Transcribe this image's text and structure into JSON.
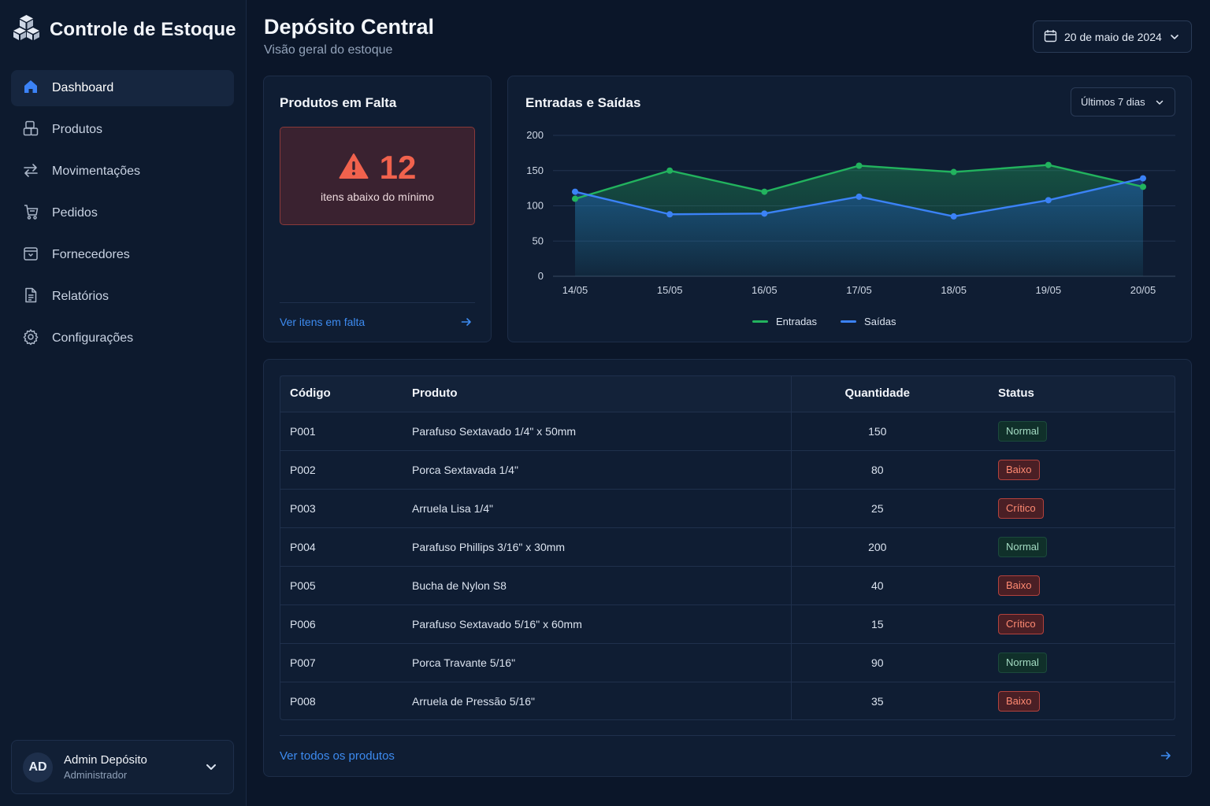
{
  "app": {
    "title": "Controle de Estoque",
    "logo_icon": "boxes-icon"
  },
  "sidebar": {
    "items": [
      {
        "label": "Dashboard",
        "icon": "home-icon",
        "active": true
      },
      {
        "label": "Produtos",
        "icon": "box-stack-icon",
        "active": false
      },
      {
        "label": "Movimentações",
        "icon": "arrows-swap-icon",
        "active": false
      },
      {
        "label": "Pedidos",
        "icon": "cart-icon",
        "active": false
      },
      {
        "label": "Fornecedores",
        "icon": "shop-bag-icon",
        "active": false
      },
      {
        "label": "Relatórios",
        "icon": "document-icon",
        "active": false
      },
      {
        "label": "Configurações",
        "icon": "gear-icon",
        "active": false
      }
    ],
    "user": {
      "initials": "AD",
      "name": "Admin Depósito",
      "role": "Administrador"
    }
  },
  "header": {
    "title": "Depósito Central",
    "subtitle": "Visão geral do estoque",
    "date": "20 de maio de 2024"
  },
  "shortage_card": {
    "title": "Produtos em Falta",
    "count": "12",
    "label": "itens abaixo do mínimo",
    "link": "Ver itens em falta"
  },
  "flow_card": {
    "title": "Entradas e Saídas",
    "range": "Últimos 7 dias"
  },
  "chart_data": {
    "type": "area",
    "title": "Entradas e Saídas",
    "x": [
      "14/05",
      "15/05",
      "16/05",
      "17/05",
      "18/05",
      "19/05",
      "20/05"
    ],
    "yticks": [
      "0",
      "50",
      "100",
      "150",
      "200"
    ],
    "ylim": [
      0,
      200
    ],
    "grid": true,
    "legend": "bottom-center",
    "series": [
      {
        "name": "Entradas",
        "color": "#22b35e",
        "values": [
          110,
          150,
          120,
          157,
          148,
          158,
          127
        ]
      },
      {
        "name": "Saídas",
        "color": "#3b82f6",
        "values": [
          120,
          88,
          89,
          113,
          85,
          108,
          139
        ]
      }
    ]
  },
  "products_table": {
    "headers": {
      "code": "Código",
      "product": "Produto",
      "qty": "Quantidade",
      "status": "Status"
    },
    "rows": [
      {
        "code": "P001",
        "product": "Parafuso Sextavado 1/4\" x 50mm",
        "qty": "150",
        "status": "Normal",
        "status_class": "normal"
      },
      {
        "code": "P002",
        "product": "Porca Sextavada 1/4\"",
        "qty": "80",
        "status": "Baixo",
        "status_class": "baixo"
      },
      {
        "code": "P003",
        "product": "Arruela Lisa 1/4\"",
        "qty": "25",
        "status": "Crítico",
        "status_class": "critico"
      },
      {
        "code": "P004",
        "product": "Parafuso Phillips 3/16\" x 30mm",
        "qty": "200",
        "status": "Normal",
        "status_class": "normal"
      },
      {
        "code": "P005",
        "product": "Bucha de Nylon S8",
        "qty": "40",
        "status": "Baixo",
        "status_class": "baixo"
      },
      {
        "code": "P006",
        "product": "Parafuso Sextavado 5/16\" x 60mm",
        "qty": "15",
        "status": "Crítico",
        "status_class": "critico"
      },
      {
        "code": "P007",
        "product": "Porca Travante 5/16\"",
        "qty": "90",
        "status": "Normal",
        "status_class": "normal"
      },
      {
        "code": "P008",
        "product": "Arruela de Pressão 5/16\"",
        "qty": "35",
        "status": "Baixo",
        "status_class": "baixo"
      }
    ],
    "link": "Ver todos os produtos"
  }
}
